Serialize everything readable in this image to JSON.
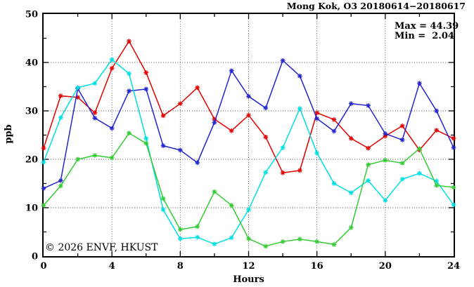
{
  "header": {
    "title": "Mong Kok, O3 20180614−20180617"
  },
  "stats": {
    "max_label": "Max = 44.39",
    "min_label": "Min =  2.04"
  },
  "watermark": "© 2026 ENVF, HKUST",
  "chart_data": {
    "type": "line",
    "title": "Mong Kok, O3 20180614−20180617",
    "xlabel": "Hours",
    "ylabel": "ppb",
    "xlim": [
      0,
      24
    ],
    "ylim": [
      0,
      50
    ],
    "x_major_ticks": [
      0,
      4,
      8,
      12,
      16,
      20,
      24
    ],
    "x_minor_ticks": [
      2,
      6,
      10,
      14,
      18,
      22
    ],
    "y_major_ticks": [
      0,
      10,
      20,
      30,
      40,
      50
    ],
    "y_minor_ticks": [
      5,
      15,
      25,
      35,
      45
    ],
    "x_grid": [
      4,
      8,
      12,
      16,
      20
    ],
    "y_grid": [
      10,
      20,
      30,
      40
    ],
    "grid": "dotted",
    "legend_position": "none",
    "annotations": {
      "max": 44.39,
      "min": 2.04
    },
    "x": [
      0,
      1,
      2,
      3,
      4,
      5,
      6,
      7,
      8,
      9,
      10,
      11,
      12,
      13,
      14,
      15,
      16,
      17,
      18,
      19,
      20,
      21,
      22,
      23,
      24
    ],
    "series": [
      {
        "name": "red",
        "color": "#e60000",
        "values": [
          22.3,
          33.1,
          32.8,
          29.6,
          38.8,
          44.39,
          37.9,
          29.0,
          31.5,
          34.8,
          28.3,
          25.9,
          29.1,
          24.6,
          17.2,
          17.7,
          29.6,
          28.2,
          24.3,
          22.3,
          24.8,
          26.9,
          21.9,
          26.0,
          24.3
        ]
      },
      {
        "name": "blue",
        "color": "#2424cf",
        "values": [
          14.0,
          15.6,
          34.6,
          28.5,
          26.4,
          34.1,
          34.5,
          22.8,
          21.9,
          19.3,
          27.6,
          38.3,
          33.0,
          30.6,
          40.4,
          37.2,
          28.4,
          25.8,
          31.5,
          31.1,
          25.3,
          24.0,
          35.7,
          30.0,
          22.4
        ]
      },
      {
        "name": "cyan",
        "color": "#00e0e0",
        "values": [
          19.4,
          28.6,
          34.8,
          35.7,
          40.6,
          37.7,
          24.3,
          9.6,
          3.6,
          3.9,
          2.5,
          3.8,
          9.6,
          17.3,
          22.4,
          30.5,
          21.3,
          15.0,
          13.1,
          15.6,
          11.5,
          15.9,
          17.1,
          15.5,
          10.6
        ]
      },
      {
        "name": "green",
        "color": "#33cc33",
        "values": [
          10.5,
          14.5,
          20.0,
          20.8,
          20.3,
          25.4,
          23.3,
          11.9,
          5.5,
          6.1,
          13.3,
          10.5,
          3.6,
          2.04,
          3.0,
          3.5,
          3.0,
          2.4,
          5.9,
          18.9,
          19.8,
          19.2,
          22.2,
          14.6,
          14.2
        ]
      }
    ]
  }
}
